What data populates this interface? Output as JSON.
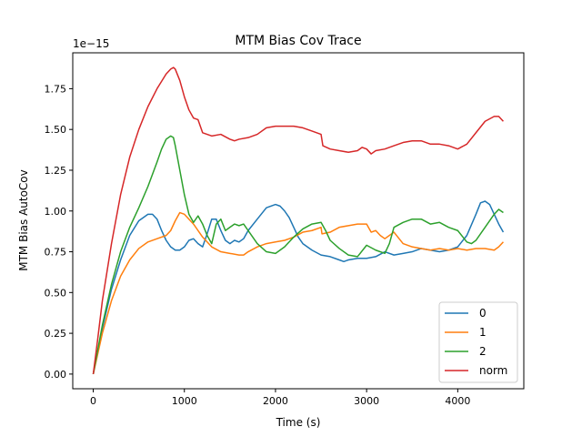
{
  "chart_data": {
    "type": "line",
    "title": "MTM Bias Cov Trace",
    "xlabel": "Time (s)",
    "ylabel": "MTM Bias AutoCov",
    "y_scale_label": "1e−15",
    "xlim": [
      -225,
      4725
    ],
    "ylim": [
      -0.09,
      1.97
    ],
    "xticks": [
      0,
      1000,
      2000,
      3000,
      4000
    ],
    "yticks": [
      0.0,
      0.25,
      0.5,
      0.75,
      1.0,
      1.25,
      1.5,
      1.75
    ],
    "grid": false,
    "legend_position": "lower-right",
    "series": [
      {
        "name": "0",
        "color": "#1f77b4",
        "x": [
          0,
          100,
          200,
          300,
          400,
          500,
          600,
          650,
          700,
          750,
          800,
          850,
          900,
          950,
          1000,
          1050,
          1100,
          1150,
          1200,
          1250,
          1300,
          1350,
          1400,
          1450,
          1500,
          1550,
          1600,
          1650,
          1700,
          1800,
          1900,
          2000,
          2050,
          2100,
          2150,
          2200,
          2250,
          2300,
          2400,
          2500,
          2600,
          2700,
          2750,
          2800,
          2900,
          3000,
          3100,
          3200,
          3300,
          3400,
          3500,
          3600,
          3700,
          3800,
          3900,
          4000,
          4100,
          4200,
          4250,
          4300,
          4350,
          4400,
          4450,
          4500
        ],
        "values": [
          0.0,
          0.28,
          0.52,
          0.7,
          0.85,
          0.94,
          0.98,
          0.98,
          0.95,
          0.88,
          0.82,
          0.78,
          0.76,
          0.76,
          0.78,
          0.82,
          0.83,
          0.8,
          0.78,
          0.86,
          0.95,
          0.95,
          0.88,
          0.82,
          0.8,
          0.82,
          0.81,
          0.83,
          0.88,
          0.95,
          1.02,
          1.04,
          1.03,
          1.0,
          0.96,
          0.9,
          0.84,
          0.8,
          0.76,
          0.73,
          0.72,
          0.7,
          0.69,
          0.7,
          0.71,
          0.71,
          0.72,
          0.75,
          0.73,
          0.74,
          0.75,
          0.77,
          0.76,
          0.75,
          0.76,
          0.78,
          0.85,
          0.98,
          1.05,
          1.06,
          1.04,
          0.98,
          0.92,
          0.87
        ]
      },
      {
        "name": "1",
        "color": "#ff7f0e",
        "x": [
          0,
          100,
          200,
          300,
          400,
          500,
          600,
          700,
          800,
          850,
          900,
          950,
          1000,
          1050,
          1100,
          1150,
          1200,
          1300,
          1400,
          1500,
          1600,
          1650,
          1700,
          1800,
          1900,
          2000,
          2100,
          2200,
          2300,
          2400,
          2500,
          2510,
          2600,
          2700,
          2800,
          2900,
          3000,
          3050,
          3100,
          3150,
          3200,
          3300,
          3400,
          3500,
          3600,
          3700,
          3800,
          3900,
          4000,
          4100,
          4200,
          4300,
          4400,
          4450,
          4500
        ],
        "values": [
          0.0,
          0.25,
          0.45,
          0.6,
          0.7,
          0.77,
          0.81,
          0.83,
          0.85,
          0.88,
          0.94,
          0.99,
          0.98,
          0.95,
          0.92,
          0.88,
          0.84,
          0.78,
          0.75,
          0.74,
          0.73,
          0.73,
          0.75,
          0.78,
          0.8,
          0.81,
          0.82,
          0.84,
          0.87,
          0.88,
          0.9,
          0.86,
          0.87,
          0.9,
          0.91,
          0.92,
          0.92,
          0.87,
          0.88,
          0.85,
          0.83,
          0.87,
          0.8,
          0.78,
          0.77,
          0.76,
          0.77,
          0.76,
          0.77,
          0.76,
          0.77,
          0.77,
          0.76,
          0.78,
          0.81
        ]
      },
      {
        "name": "2",
        "color": "#2ca02c",
        "x": [
          0,
          100,
          200,
          300,
          400,
          500,
          600,
          700,
          750,
          800,
          850,
          880,
          900,
          950,
          1000,
          1050,
          1100,
          1150,
          1200,
          1250,
          1300,
          1350,
          1400,
          1450,
          1500,
          1550,
          1600,
          1650,
          1700,
          1800,
          1900,
          2000,
          2100,
          2200,
          2300,
          2400,
          2500,
          2550,
          2600,
          2700,
          2800,
          2900,
          3000,
          3100,
          3200,
          3250,
          3300,
          3400,
          3500,
          3600,
          3700,
          3800,
          3900,
          4000,
          4100,
          4150,
          4200,
          4300,
          4400,
          4450,
          4500
        ],
        "values": [
          0.0,
          0.3,
          0.55,
          0.75,
          0.9,
          1.02,
          1.15,
          1.3,
          1.38,
          1.44,
          1.46,
          1.45,
          1.4,
          1.25,
          1.1,
          0.98,
          0.93,
          0.97,
          0.92,
          0.85,
          0.8,
          0.92,
          0.95,
          0.88,
          0.9,
          0.92,
          0.91,
          0.92,
          0.88,
          0.8,
          0.75,
          0.74,
          0.78,
          0.84,
          0.89,
          0.92,
          0.93,
          0.88,
          0.82,
          0.77,
          0.73,
          0.72,
          0.79,
          0.76,
          0.74,
          0.8,
          0.9,
          0.93,
          0.95,
          0.95,
          0.92,
          0.93,
          0.9,
          0.88,
          0.81,
          0.8,
          0.82,
          0.9,
          0.98,
          1.01,
          0.99
        ]
      },
      {
        "name": "norm",
        "color": "#d62728",
        "x": [
          0,
          50,
          100,
          200,
          300,
          400,
          500,
          600,
          700,
          800,
          850,
          880,
          900,
          950,
          1000,
          1050,
          1100,
          1150,
          1200,
          1300,
          1400,
          1500,
          1550,
          1600,
          1700,
          1800,
          1900,
          2000,
          2100,
          2200,
          2300,
          2400,
          2500,
          2520,
          2600,
          2700,
          2800,
          2900,
          2950,
          3000,
          3050,
          3100,
          3200,
          3300,
          3400,
          3500,
          3600,
          3700,
          3800,
          3900,
          4000,
          4100,
          4200,
          4300,
          4400,
          4450,
          4500
        ],
        "values": [
          0.0,
          0.22,
          0.45,
          0.8,
          1.1,
          1.33,
          1.5,
          1.64,
          1.75,
          1.84,
          1.87,
          1.88,
          1.87,
          1.8,
          1.7,
          1.62,
          1.57,
          1.56,
          1.48,
          1.46,
          1.47,
          1.44,
          1.43,
          1.44,
          1.45,
          1.47,
          1.51,
          1.52,
          1.52,
          1.52,
          1.51,
          1.49,
          1.47,
          1.4,
          1.38,
          1.37,
          1.36,
          1.37,
          1.39,
          1.38,
          1.35,
          1.37,
          1.38,
          1.4,
          1.42,
          1.43,
          1.43,
          1.41,
          1.41,
          1.4,
          1.38,
          1.41,
          1.48,
          1.55,
          1.58,
          1.58,
          1.55
        ]
      }
    ]
  }
}
